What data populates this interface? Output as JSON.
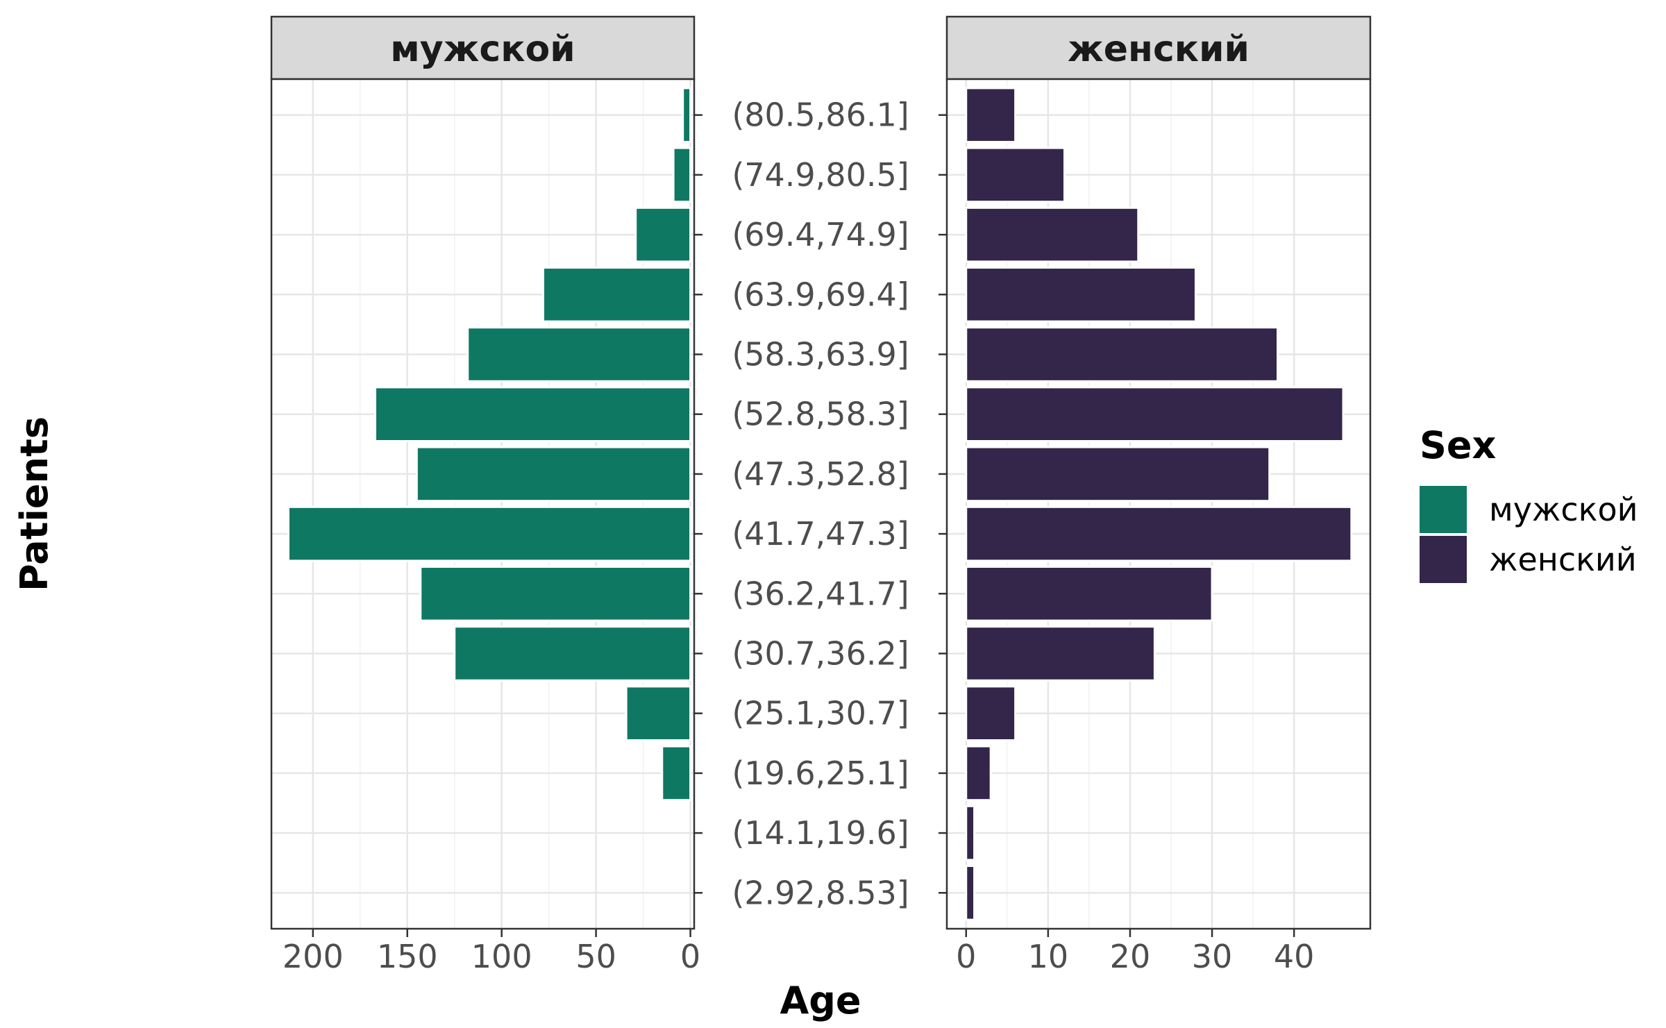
{
  "chart_data": {
    "type": "bar",
    "orientation": "horizontal",
    "xlabel": "Age",
    "ylabel": "Patients",
    "categories": [
      "(2.92,8.53]",
      "(14.1,19.6]",
      "(19.6,25.1]",
      "(25.1,30.7]",
      "(30.7,36.2]",
      "(36.2,41.7]",
      "(41.7,47.3]",
      "(47.3,52.8]",
      "(52.8,58.3]",
      "(58.3,63.9]",
      "(63.9,69.4]",
      "(69.4,74.9]",
      "(74.9,80.5]",
      "(80.5,86.1]"
    ],
    "legend": {
      "title": "Sex",
      "position": "right",
      "entries": [
        {
          "label": "мужской",
          "color": "#0f7862"
        },
        {
          "label": "женский",
          "color": "#33264a"
        }
      ]
    },
    "facets": [
      {
        "strip": "мужской",
        "color": "#0f7862",
        "reversed": true,
        "xlim": [
          222,
          -2
        ],
        "ticks": [
          200,
          150,
          100,
          50,
          0
        ],
        "tick_labels": [
          "200",
          "150",
          "100",
          "50",
          "0"
        ],
        "values": [
          0,
          0,
          15,
          34,
          125,
          143,
          213,
          145,
          167,
          118,
          78,
          29,
          9,
          4
        ]
      },
      {
        "strip": "женский",
        "color": "#33264a",
        "reversed": false,
        "xlim": [
          -2.35,
          49.3
        ],
        "ticks": [
          0,
          10,
          20,
          30,
          40
        ],
        "tick_labels": [
          "0",
          "10",
          "20",
          "30",
          "40"
        ],
        "values": [
          1,
          1,
          3,
          6,
          23,
          30,
          47,
          37,
          46,
          38,
          28,
          21,
          12,
          6
        ]
      }
    ],
    "grid": true
  }
}
